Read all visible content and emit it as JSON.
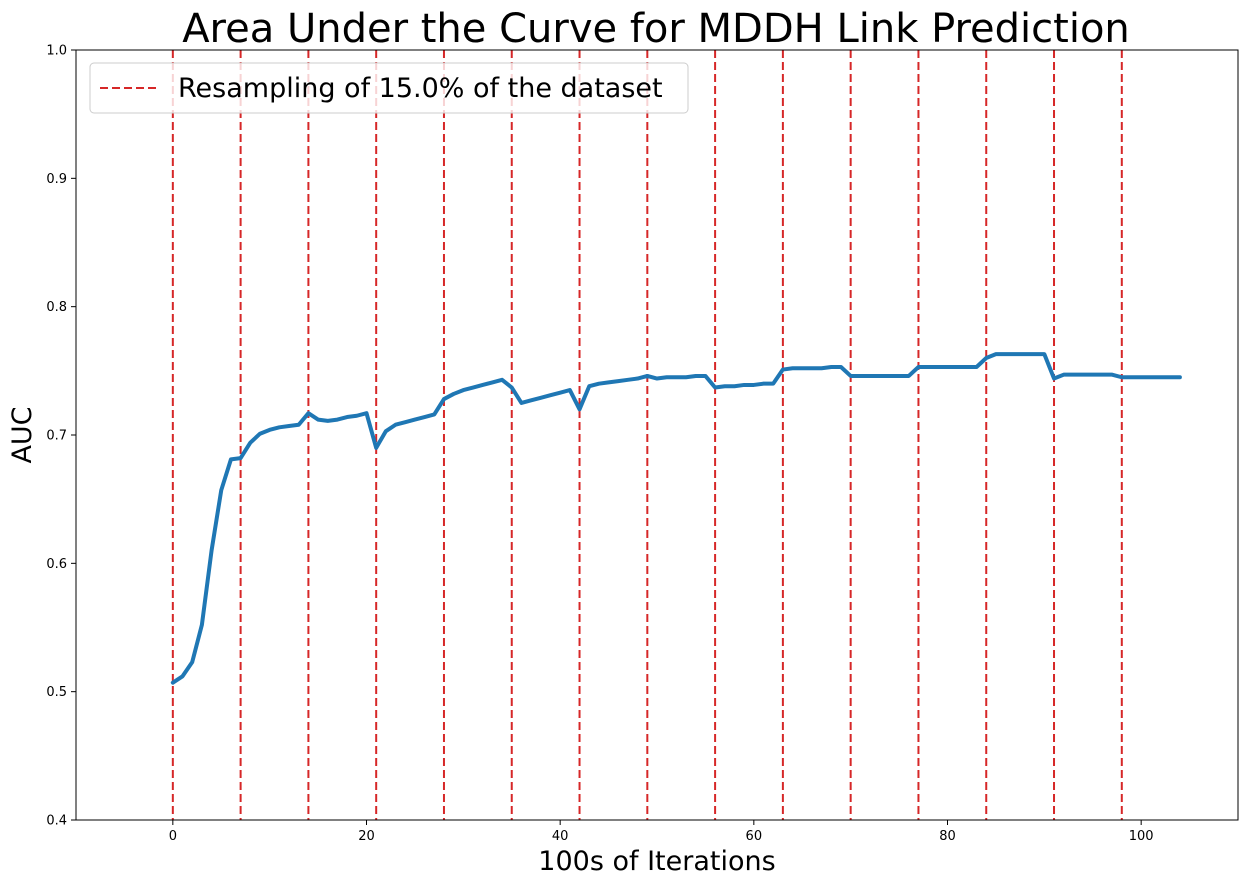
{
  "chart_data": {
    "type": "line",
    "title": "Area Under the Curve for MDDH Link Prediction",
    "xlabel": "100s of Iterations",
    "ylabel": "AUC",
    "xlim": [
      -10,
      110
    ],
    "ylim": [
      0.4,
      1.0
    ],
    "xticks": [
      0,
      20,
      40,
      60,
      80,
      100
    ],
    "yticks": [
      0.4,
      0.5,
      0.6,
      0.7,
      0.8,
      0.9,
      1.0
    ],
    "grid": false,
    "legend_position": "top-left",
    "colors": {
      "line": "#1f77b4",
      "vlines": "#d62728"
    },
    "series": [
      {
        "x": [
          0,
          1,
          2,
          3,
          4,
          5,
          6,
          7,
          8,
          9,
          10,
          11,
          12,
          13,
          14,
          15,
          16,
          17,
          18,
          19,
          20,
          21,
          22,
          23,
          24,
          25,
          26,
          27,
          28,
          29,
          30,
          31,
          32,
          33,
          34,
          35,
          36,
          37,
          38,
          39,
          40,
          41,
          42,
          43,
          44,
          45,
          46,
          47,
          48,
          49,
          50,
          51,
          52,
          53,
          54,
          55,
          56,
          57,
          58,
          59,
          60,
          61,
          62,
          63,
          64,
          65,
          66,
          67,
          68,
          69,
          70,
          71,
          72,
          73,
          74,
          75,
          76,
          77,
          78,
          79,
          80,
          81,
          82,
          83,
          84,
          85,
          86,
          87,
          88,
          89,
          90,
          91,
          92,
          93,
          94,
          95,
          96,
          97,
          98,
          99,
          100,
          101,
          102,
          103,
          104
        ],
        "values": [
          0.507,
          0.512,
          0.523,
          0.552,
          0.61,
          0.657,
          0.681,
          0.682,
          0.694,
          0.701,
          0.704,
          0.706,
          0.707,
          0.708,
          0.717,
          0.712,
          0.711,
          0.712,
          0.714,
          0.715,
          0.717,
          0.69,
          0.703,
          0.708,
          0.71,
          0.712,
          0.714,
          0.716,
          0.728,
          0.732,
          0.735,
          0.737,
          0.739,
          0.741,
          0.743,
          0.737,
          0.725,
          0.727,
          0.729,
          0.731,
          0.733,
          0.735,
          0.72,
          0.738,
          0.74,
          0.741,
          0.742,
          0.743,
          0.744,
          0.746,
          0.744,
          0.745,
          0.745,
          0.745,
          0.746,
          0.746,
          0.737,
          0.738,
          0.738,
          0.739,
          0.739,
          0.74,
          0.74,
          0.751,
          0.752,
          0.752,
          0.752,
          0.752,
          0.753,
          0.753,
          0.746,
          0.746,
          0.746,
          0.746,
          0.746,
          0.746,
          0.746,
          0.753,
          0.753,
          0.753,
          0.753,
          0.753,
          0.753,
          0.753,
          0.76,
          0.763,
          0.763,
          0.763,
          0.763,
          0.763,
          0.763,
          0.744,
          0.747,
          0.747,
          0.747,
          0.747,
          0.747,
          0.747,
          0.745,
          0.745,
          0.745,
          0.745,
          0.745,
          0.745,
          0.745
        ]
      }
    ],
    "vlines": {
      "label": "Resampling of 15.0% of the dataset",
      "x": [
        0,
        7,
        14,
        21,
        28,
        35,
        42,
        49,
        56,
        63,
        70,
        77,
        84,
        91,
        98
      ]
    }
  }
}
